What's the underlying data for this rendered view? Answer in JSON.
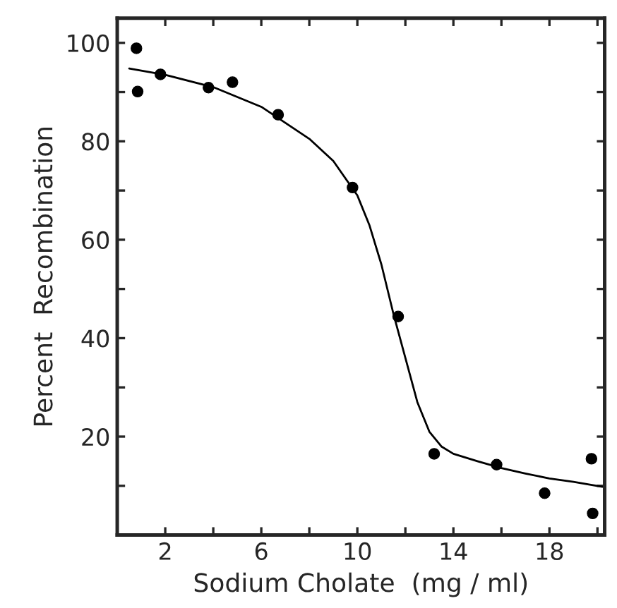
{
  "chart_data": {
    "type": "scatter",
    "xlabel": "Sodium Cholate  (mg / ml)",
    "ylabel": "Percent  Recombination",
    "xlim": [
      0,
      20.3
    ],
    "ylim": [
      0,
      105
    ],
    "xticks": [
      {
        "value": 2,
        "label": "2"
      },
      {
        "value": 4,
        "label": null
      },
      {
        "value": 6,
        "label": "6"
      },
      {
        "value": 8,
        "label": null
      },
      {
        "value": 10,
        "label": "10"
      },
      {
        "value": 12,
        "label": null
      },
      {
        "value": 14,
        "label": "14"
      },
      {
        "value": 16,
        "label": null
      },
      {
        "value": 18,
        "label": "18"
      },
      {
        "value": 20,
        "label": null
      }
    ],
    "yticks": [
      {
        "value": 10,
        "label": null
      },
      20,
      {
        "value": 30,
        "label": null
      },
      40,
      {
        "value": 50,
        "label": null
      },
      60,
      {
        "value": 70,
        "label": null
      },
      80,
      {
        "value": 90,
        "label": null
      },
      100
    ],
    "grid": false,
    "series": [
      {
        "marker": "circle",
        "color": "#000000",
        "x": [
          0.8,
          0.85,
          1.8,
          3.8,
          4.8,
          6.7,
          9.8,
          11.7,
          13.2,
          15.8,
          17.8,
          19.75,
          19.8
        ],
        "values": [
          98.9,
          90.1,
          93.6,
          90.9,
          92,
          85.4,
          70.6,
          44.4,
          16.5,
          14.3,
          8.5,
          15.5,
          4.4
        ]
      },
      {
        "type": "line",
        "marker": "none",
        "color": "#000000",
        "line_style": "solid",
        "x": [
          0.5,
          2,
          4,
          6,
          8,
          9,
          10,
          10.5,
          11,
          11.5,
          12,
          12.5,
          13,
          13.5,
          14,
          15,
          16,
          17,
          18,
          19,
          20.2
        ],
        "values": [
          94.8,
          93.5,
          91,
          87,
          80.5,
          76,
          69,
          63,
          55,
          45,
          36,
          27,
          21,
          18,
          16.5,
          15,
          13.6,
          12.5,
          11.5,
          10.8,
          9.8
        ]
      }
    ]
  }
}
